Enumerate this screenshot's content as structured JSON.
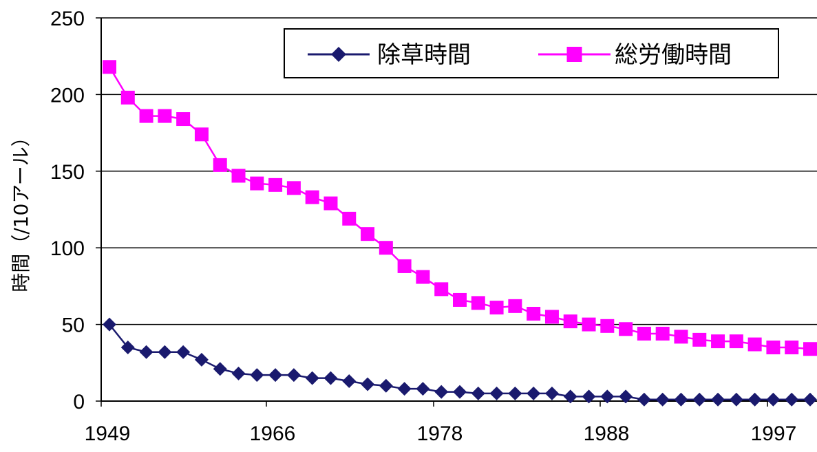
{
  "chart_data": {
    "type": "line",
    "title": "",
    "xlabel": "",
    "ylabel": "時間（/10アール）",
    "ylim": [
      0,
      250
    ],
    "y_ticks": [
      "0",
      "50",
      "100",
      "150",
      "200",
      "250"
    ],
    "x_tick_labels": [
      "1949",
      "1966",
      "1978",
      "1988",
      "1997"
    ],
    "grid": "horizontal",
    "legend_position": "top-right",
    "point_count": 39,
    "series": [
      {
        "name": "除草時間",
        "color": "#1a1a6e",
        "marker": "diamond",
        "values": [
          50,
          35,
          32,
          32,
          32,
          27,
          21,
          18,
          17,
          17,
          17,
          15,
          15,
          13,
          11,
          10,
          8,
          8,
          6,
          6,
          5,
          5,
          5,
          5,
          5,
          3,
          3,
          3,
          3,
          1,
          1,
          1,
          1,
          1,
          1,
          1,
          1,
          1,
          1
        ]
      },
      {
        "name": "総労働時間",
        "color": "#ff00ff",
        "marker": "square",
        "values": [
          218,
          198,
          186,
          186,
          184,
          174,
          154,
          147,
          142,
          141,
          139,
          133,
          129,
          119,
          109,
          100,
          88,
          81,
          73,
          66,
          64,
          61,
          62,
          57,
          55,
          52,
          50,
          49,
          47,
          44,
          44,
          42,
          40,
          39,
          39,
          37,
          35,
          35,
          34
        ]
      }
    ]
  }
}
